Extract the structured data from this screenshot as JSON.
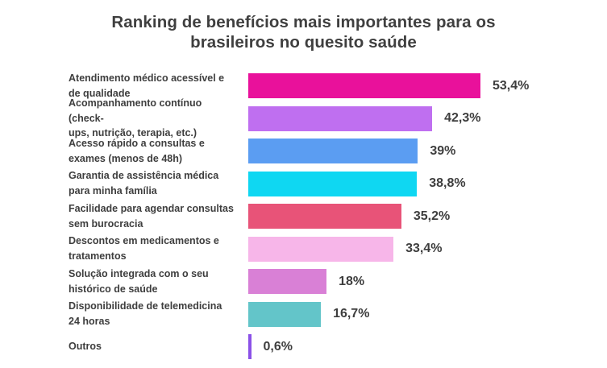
{
  "page": {
    "background": "#ffffff",
    "text_color": "#3f3f3f"
  },
  "chart_data": {
    "type": "bar",
    "orientation": "horizontal",
    "title": "Ranking de benefícios mais importantes para os brasileiros no quesito saúde",
    "categories": [
      "Atendimento médico acessível e\nde qualidade",
      "Acompanhamento contínuo (check-\nups, nutrição, terapia, etc.)",
      "Acesso rápido a consultas e\nexames (menos de 48h)",
      "Garantia de assistência médica\npara minha família",
      "Facilidade para agendar consultas\nsem burocracia",
      "Descontos em medicamentos e\ntratamentos",
      "Solução integrada com o seu\nhistórico de saúde",
      "Disponibilidade de telemedicina\n24 horas",
      "Outros"
    ],
    "values": [
      53.4,
      42.3,
      39,
      38.8,
      35.2,
      33.4,
      18,
      16.7,
      0.6
    ],
    "value_labels": [
      "53,4%",
      "42,3%",
      "39%",
      "38,8%",
      "35,2%",
      "33,4%",
      "18%",
      "16,7%",
      "0,6%"
    ],
    "bar_colors": [
      "#E9119B",
      "#BF6FF0",
      "#5B9DF2",
      "#0FD7F2",
      "#E85378",
      "#F7B6E9",
      "#D980D6",
      "#63C5C9",
      "#8B51E8"
    ],
    "value_label_position": "right-of-bar",
    "axes": "hidden",
    "grid": false,
    "legend": false,
    "xlim": [
      0,
      57
    ]
  }
}
